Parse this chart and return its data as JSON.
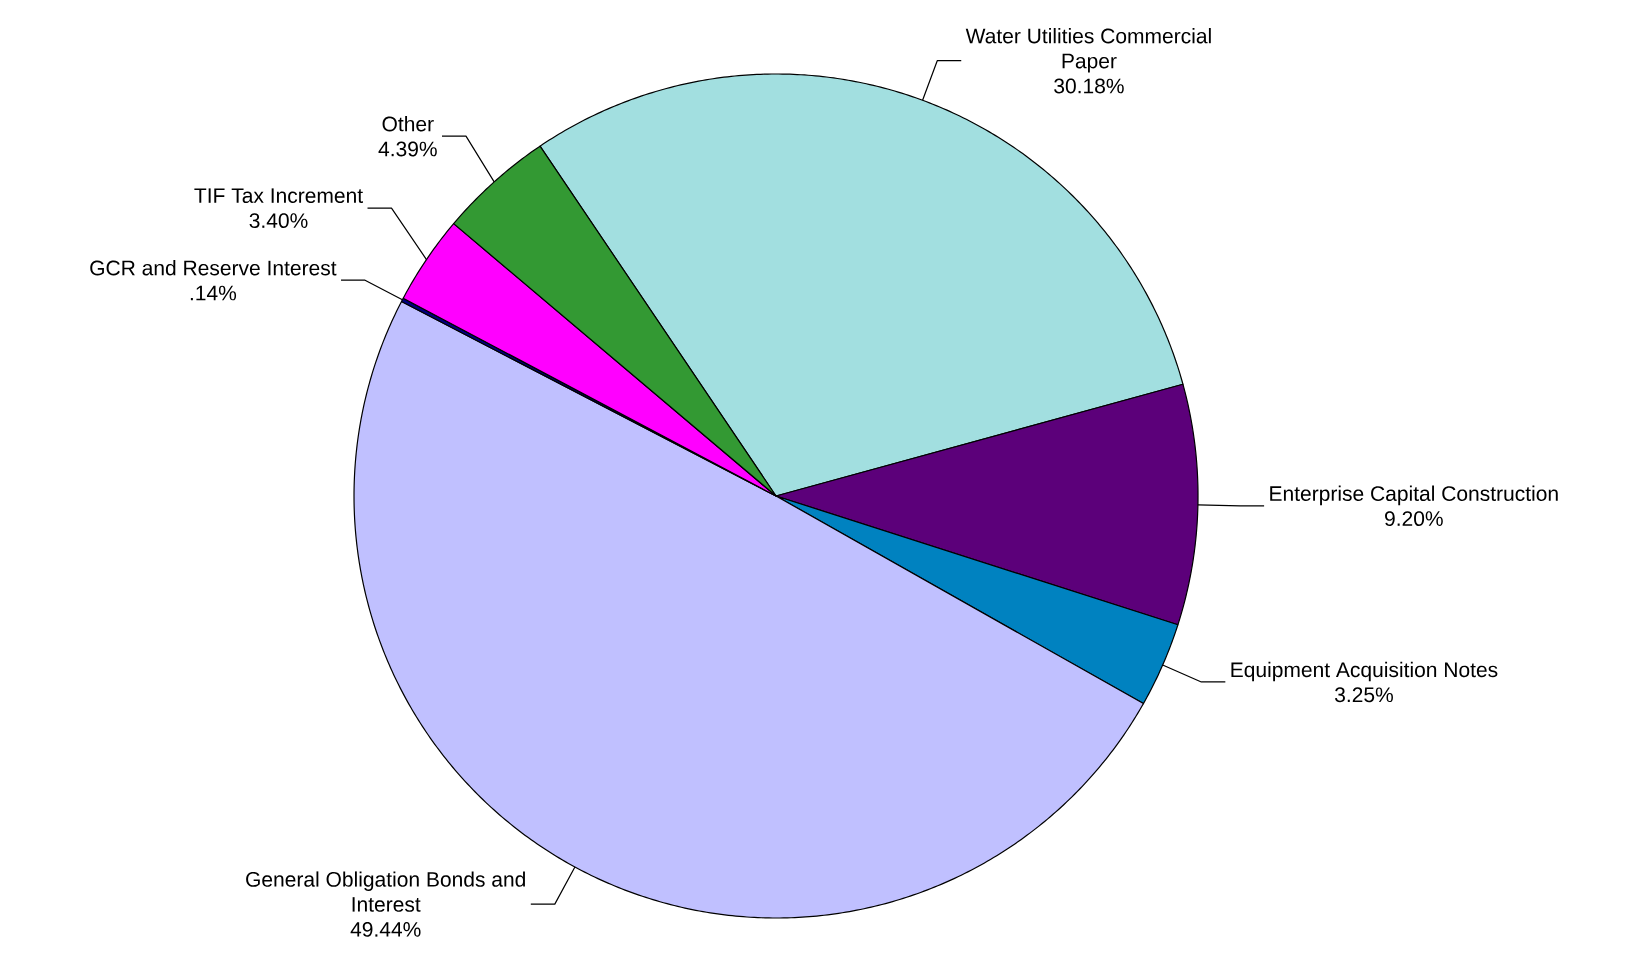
{
  "chart_data": {
    "type": "pie",
    "categories": [
      "Water Utilities Commercial Paper",
      "Enterprise Capital Construction",
      "Equipment Acquisition Notes",
      "General Obligation Bonds and Interest",
      "GCR and Reserve Interest",
      "TIF Tax Increment",
      "Other"
    ],
    "values": [
      30.18,
      9.2,
      3.25,
      49.44,
      0.14,
      3.4,
      4.39
    ],
    "colors": [
      "#a2dfe0",
      "#5c007a",
      "#0082c0",
      "#c0c0ff",
      "#00007f",
      "#ff00ff",
      "#339933"
    ],
    "value_labels": [
      "30.18%",
      "9.20%",
      "3.25%",
      "49.44%",
      ".14%",
      "3.40%",
      "4.39%"
    ]
  }
}
